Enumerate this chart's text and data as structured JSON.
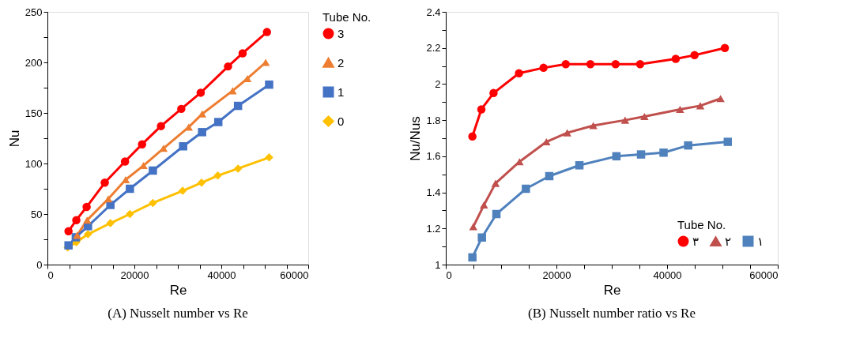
{
  "chart_data": [
    {
      "type": "line",
      "xlabel": "Re",
      "ylabel": "Nu",
      "legend_title": "Tube No.",
      "legend": "right",
      "grid": false,
      "line_style": "solid",
      "annotations": [
        "(A) Nusselt number vs Re"
      ],
      "xlim": [
        0,
        60000
      ],
      "xticks": [
        0,
        {
          "value": 5000,
          "label": null
        },
        {
          "value": 10000,
          "label": null
        },
        {
          "value": 15000,
          "label": null
        },
        20000,
        {
          "value": 25000,
          "label": null
        },
        {
          "value": 30000,
          "label": null
        },
        {
          "value": 35000,
          "label": null
        },
        40000,
        {
          "value": 45000,
          "label": null
        },
        {
          "value": 50000,
          "label": null
        },
        {
          "value": 55000,
          "label": null
        },
        60000
      ],
      "ylim": [
        0,
        250
      ],
      "yticks": [
        0,
        {
          "value": 25,
          "label": null
        },
        50,
        {
          "value": 75,
          "label": null
        },
        100,
        {
          "value": 125,
          "label": null
        },
        150,
        {
          "value": 175,
          "label": null
        },
        200,
        {
          "value": 225,
          "label": null
        },
        250
      ],
      "series": [
        {
          "name": "3",
          "color": "#ff0000",
          "marker": "circle",
          "x": [
            4850,
            6650,
            9020,
            13190,
            17850,
            21770,
            26120,
            30790,
            35260,
            41550,
            44900,
            50500
          ],
          "values": [
            33,
            44,
            57,
            81,
            102,
            119,
            137,
            154,
            170,
            196,
            209,
            230
          ]
        },
        {
          "name": "2",
          "color": "#ed7d31",
          "marker": "triangle",
          "x": [
            6840,
            9140,
            14000,
            18000,
            22100,
            26700,
            32500,
            35600,
            42600,
            46000,
            50200
          ],
          "values": [
            29,
            44,
            65,
            84,
            98,
            115,
            136,
            149,
            172,
            184,
            200
          ]
        },
        {
          "name": "1",
          "color": "#4472c4",
          "marker": "square",
          "x": [
            4850,
            6530,
            9330,
            14490,
            18970,
            24260,
            31220,
            35580,
            39310,
            43850,
            51000
          ],
          "values": [
            19,
            27,
            38,
            59,
            75,
            93,
            117,
            131,
            141,
            157,
            178
          ]
        },
        {
          "name": "0",
          "color": "#ffc000",
          "marker": "diamond",
          "x": [
            4660,
            6650,
            9330,
            14490,
            18970,
            24260,
            31100,
            35450,
            39190,
            43850,
            51000
          ],
          "values": [
            17,
            22,
            30,
            41,
            50,
            61,
            73,
            81,
            88,
            95,
            106
          ]
        }
      ]
    },
    {
      "type": "line",
      "xlabel": "Re",
      "ylabel": "Nu/Nus",
      "legend_title": "Tube No.",
      "legend": "bottom right",
      "grid": false,
      "line_style": "solid",
      "annotations": [
        "(B) Nusselt number ratio vs Re"
      ],
      "xlim": [
        0,
        60000
      ],
      "xticks": [
        0,
        {
          "value": 5000,
          "label": null
        },
        {
          "value": 10000,
          "label": null
        },
        {
          "value": 15000,
          "label": null
        },
        20000,
        {
          "value": 25000,
          "label": null
        },
        {
          "value": 30000,
          "label": null
        },
        {
          "value": 35000,
          "label": null
        },
        40000,
        {
          "value": 45000,
          "label": null
        },
        {
          "value": 50000,
          "label": null
        },
        {
          "value": 55000,
          "label": null
        },
        60000
      ],
      "ylim": [
        1,
        2.4
      ],
      "yticks": [
        1,
        {
          "value": 1.1,
          "label": null
        },
        1.2,
        {
          "value": 1.3,
          "label": null
        },
        1.4,
        {
          "value": 1.5,
          "label": null
        },
        1.6,
        {
          "value": 1.7,
          "label": null
        },
        1.8,
        {
          "value": 1.9,
          "label": null
        },
        2,
        {
          "value": 2.1,
          "label": null
        },
        2.2,
        {
          "value": 2.3,
          "label": null
        },
        2.4
      ],
      "series": [
        {
          "name": "٣",
          "color": "#ff0000",
          "marker": "circle",
          "x": [
            4810,
            6430,
            8630,
            13230,
            17670,
            21690,
            26140,
            30690,
            35130,
            41560,
            44960,
            50440
          ],
          "values": [
            1.71,
            1.86,
            1.95,
            2.06,
            2.09,
            2.11,
            2.11,
            2.11,
            2.11,
            2.14,
            2.16,
            2.2
          ]
        },
        {
          "name": "٢",
          "color": "#c0504d",
          "marker": "triangle",
          "x": [
            4970,
            6900,
            8990,
            13330,
            18190,
            21950,
            26660,
            32410,
            35910,
            42340,
            46000,
            49660
          ],
          "values": [
            1.21,
            1.33,
            1.45,
            1.57,
            1.68,
            1.73,
            1.77,
            1.8,
            1.82,
            1.86,
            1.88,
            1.92
          ]
        },
        {
          "name": "١",
          "color": "#4f81bd",
          "marker": "square",
          "x": [
            4810,
            6530,
            9150,
            14480,
            18710,
            24150,
            30840,
            35290,
            39360,
            43810,
            50970
          ],
          "values": [
            1.04,
            1.15,
            1.28,
            1.42,
            1.49,
            1.55,
            1.6,
            1.61,
            1.62,
            1.66,
            1.68
          ]
        }
      ]
    }
  ]
}
